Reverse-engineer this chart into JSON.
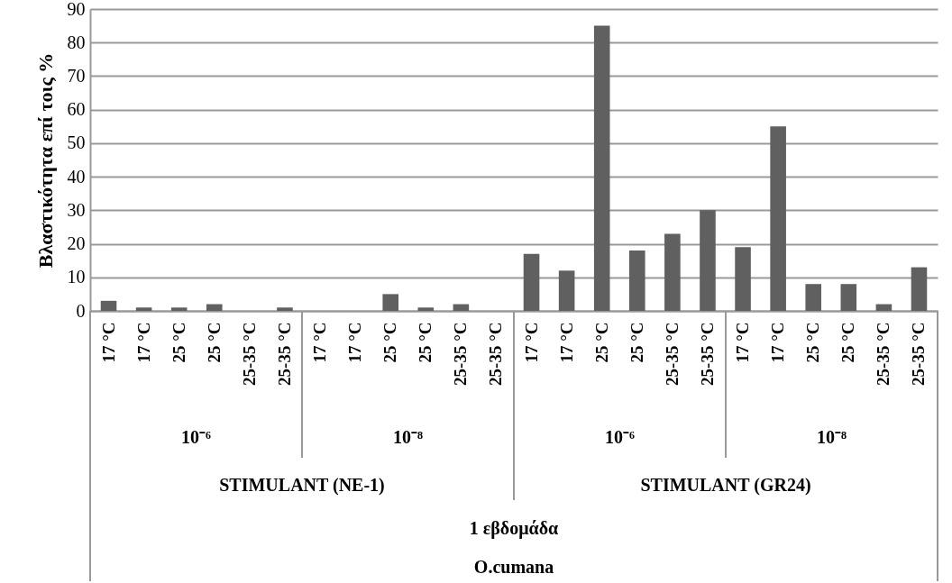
{
  "chart_data": {
    "type": "bar",
    "ylabel": "Βλαστικότητα επί τοις %",
    "categories": [
      "17 °C",
      "17 °C",
      "25 °C",
      "25 °C",
      "25-35 °C",
      "25-35 °C",
      "17 °C",
      "17 °C",
      "25 °C",
      "25 °C",
      "25-35 °C",
      "25-35 °C",
      "17 °C",
      "17 °C",
      "25 °C",
      "25 °C",
      "25-35 °C",
      "25-35 °C",
      "17 °C",
      "17 °C",
      "25 °C",
      "25 °C",
      "25-35 °C",
      "25-35 °C"
    ],
    "values": [
      3,
      1,
      1,
      2,
      0,
      1,
      0,
      0,
      5,
      1,
      2,
      0,
      17,
      12,
      85,
      18,
      23,
      30,
      19,
      55,
      8,
      8,
      2,
      13
    ],
    "color": "#606060",
    "ylim": [
      0,
      90
    ],
    "yticks": [
      0,
      10,
      20,
      30,
      40,
      50,
      60,
      70,
      80,
      90
    ],
    "grid": "y",
    "annotations": [
      "10⁻⁶",
      "10⁻⁸",
      "10⁻⁶",
      "10⁻⁸",
      "STIMULANT (NE-1)",
      "STIMULANT (GR24)",
      "1 εβδομάδα",
      "O.cumana"
    ]
  }
}
